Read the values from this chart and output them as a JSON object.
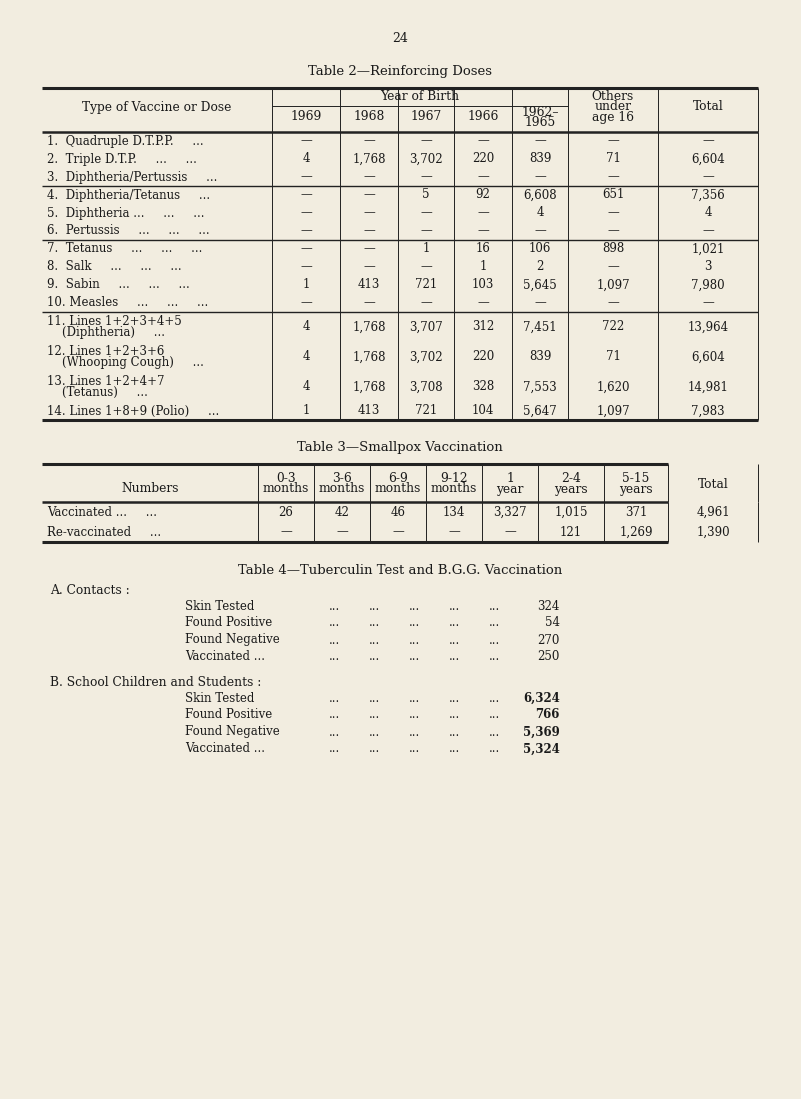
{
  "bg_color": "#f2ede0",
  "text_color": "#1a1a1a",
  "page_number": "24",
  "table2_title": "Table 2—Reinforcing Doses",
  "table3_title": "Table 3—Smallpox Vaccination",
  "table4_title": "Table 4—Tuberculin Test and B.G.G. Vaccination",
  "table2_rows": [
    [
      "1.  Quadruple D.T.P.P.     ...",
      "—",
      "—",
      "—",
      "—",
      "—",
      "—",
      "—"
    ],
    [
      "2.  Triple D.T.P.     ...     ...",
      "4",
      "1,768",
      "3,702",
      "220",
      "839",
      "71",
      "6,604"
    ],
    [
      "3.  Diphtheria/Pertussis     ...",
      "—",
      "—",
      "—",
      "—",
      "—",
      "—",
      "—"
    ],
    [
      "4.  Diphtheria/Tetanus     ...",
      "—",
      "—",
      "5",
      "92",
      "6,608",
      "651",
      "7,356"
    ],
    [
      "5.  Diphtheria ...     ...     ...",
      "—",
      "—",
      "—",
      "—",
      "4",
      "—",
      "4"
    ],
    [
      "6.  Pertussis     ...     ...     ...",
      "—",
      "—",
      "—",
      "—",
      "—",
      "—",
      "—"
    ],
    [
      "7.  Tetanus     ...     ...     ...",
      "—",
      "—",
      "1",
      "16",
      "106",
      "898",
      "1,021"
    ],
    [
      "8.  Salk     ...     ...     ...",
      "—",
      "—",
      "—",
      "1",
      "2",
      "—",
      "3"
    ],
    [
      "9.  Sabin     ...     ...     ...",
      "1",
      "413",
      "721",
      "103",
      "5,645",
      "1,097",
      "7,980"
    ],
    [
      "10. Measles     ...     ...     ...",
      "—",
      "—",
      "—",
      "—",
      "—",
      "—",
      "—"
    ],
    [
      "11. Lines 1+2+3+4+5\n    (Diphtheria)     ...",
      "4",
      "1,768",
      "3,707",
      "312",
      "7,451",
      "722",
      "13,964"
    ],
    [
      "12. Lines 1+2+3+6\n    (Whooping Cough)     ...",
      "4",
      "1,768",
      "3,702",
      "220",
      "839",
      "71",
      "6,604"
    ],
    [
      "13. Lines 1+2+4+7\n    (Tetanus)     ...",
      "4",
      "1,768",
      "3,708",
      "328",
      "7,553",
      "1,620",
      "14,981"
    ],
    [
      "14. Lines 1+8+9 (Polio)     ...",
      "1",
      "413",
      "721",
      "104",
      "5,647",
      "1,097",
      "7,983"
    ]
  ],
  "table2_group_seps": [
    3,
    6,
    10
  ],
  "table3_data_labels": [
    "Vaccinated ...     ...",
    "Re-vaccinated     ..."
  ],
  "table3_col_headers": [
    "0-3\nmonths",
    "3-6\nmonths",
    "6-9\nmonths",
    "9-12\nmonths",
    "1\nyear",
    "2-4\nyears",
    "5-15\nyears",
    "Total"
  ],
  "table3_data": [
    [
      "26",
      "42",
      "46",
      "134",
      "3,327",
      "1,015",
      "371",
      "4,961"
    ],
    [
      "—",
      "—",
      "—",
      "—",
      "—",
      "121",
      "1,269",
      "1,390"
    ]
  ],
  "table4_section_a_label": "A. Contacts :",
  "table4_a_rows": [
    [
      "Skin Tested",
      "324"
    ],
    [
      "Found Positive",
      "54"
    ],
    [
      "Found Negative",
      "270"
    ],
    [
      "Vaccinated ...",
      "250"
    ]
  ],
  "table4_section_b_label": "B. School Children and Students :",
  "table4_b_rows": [
    [
      "Skin Tested",
      "6,324"
    ],
    [
      "Found Positive",
      "766"
    ],
    [
      "Found Negative",
      "5,369"
    ],
    [
      "Vaccinated ...",
      "5,324"
    ]
  ]
}
